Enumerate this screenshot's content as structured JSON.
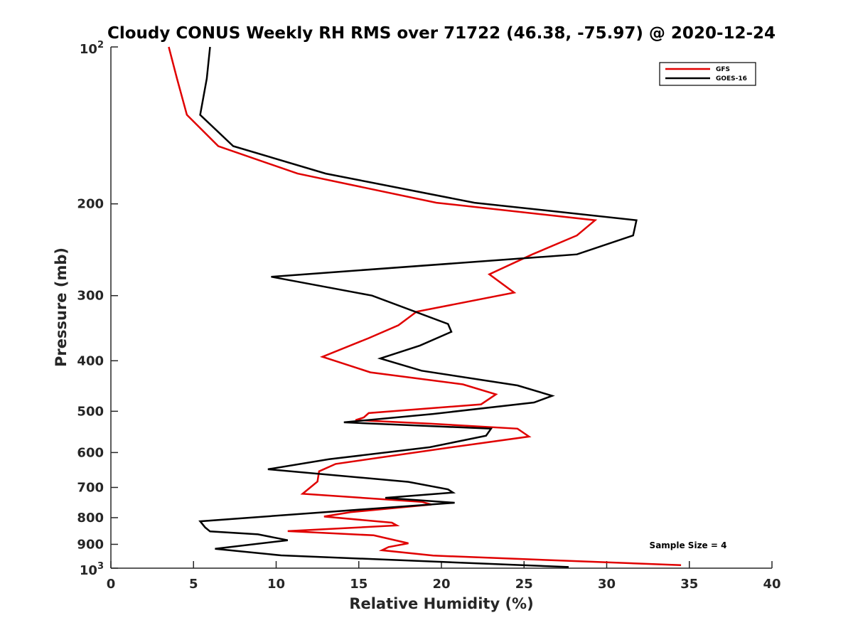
{
  "chart_data": {
    "type": "line",
    "title": "Cloudy CONUS Weekly RH RMS over 71722 (46.38, -75.97) @ 2020-12-24",
    "xlabel": "Relative Humidity (%)",
    "ylabel": "Pressure (mb)",
    "xlim": [
      0,
      40
    ],
    "ylim": [
      100,
      1000
    ],
    "yscale": "log",
    "y_reversed": true,
    "grid": false,
    "x_ticks": [
      0,
      5,
      10,
      15,
      20,
      25,
      30,
      35,
      40
    ],
    "x_tick_labels": [
      "0",
      "5",
      "10",
      "15",
      "20",
      "25",
      "30",
      "35",
      "40"
    ],
    "y_ticks": [
      200,
      300,
      400,
      500,
      600,
      700,
      800,
      900
    ],
    "y_tick_labels": [
      "200",
      "300",
      "400",
      "500",
      "600",
      "700",
      "800",
      "900"
    ],
    "y_ticks_exp": [
      {
        "value": 100,
        "base": "10",
        "exp": "2"
      },
      {
        "value": 1000,
        "base": "10",
        "exp": "3"
      }
    ],
    "legend": {
      "position": "top-right",
      "entries": [
        "GFS",
        "GOES-16"
      ]
    },
    "annotation": "Sample Size = 4",
    "series": [
      {
        "name": "GFS",
        "color": "#e00000",
        "points": [
          [
            3.5,
            100
          ],
          [
            4.0,
            115
          ],
          [
            4.6,
            135
          ],
          [
            6.5,
            155
          ],
          [
            11.3,
            175
          ],
          [
            19.7,
            199
          ],
          [
            29.3,
            215
          ],
          [
            28.2,
            230
          ],
          [
            25.5,
            250
          ],
          [
            22.9,
            273
          ],
          [
            24.4,
            296
          ],
          [
            18.5,
            322
          ],
          [
            17.4,
            342
          ],
          [
            15.6,
            362
          ],
          [
            12.8,
            393
          ],
          [
            15.7,
            421
          ],
          [
            21.3,
            444
          ],
          [
            23.3,
            464
          ],
          [
            22.4,
            485
          ],
          [
            15.6,
            504
          ],
          [
            15.3,
            514
          ],
          [
            14.8,
            520
          ],
          [
            19.3,
            528
          ],
          [
            24.6,
            540
          ],
          [
            25.3,
            559
          ],
          [
            20.3,
            588
          ],
          [
            13.6,
            631
          ],
          [
            12.6,
            652
          ],
          [
            12.5,
            682
          ],
          [
            11.6,
            720
          ],
          [
            18.8,
            746
          ],
          [
            19.4,
            755
          ],
          [
            14.5,
            781
          ],
          [
            12.9,
            796
          ],
          [
            17.0,
            818
          ],
          [
            17.3,
            828
          ],
          [
            10.7,
            849
          ],
          [
            15.9,
            865
          ],
          [
            18.0,
            896
          ],
          [
            16.8,
            911
          ],
          [
            16.4,
            924
          ],
          [
            19.5,
            946
          ],
          [
            34.5,
            987
          ]
        ]
      },
      {
        "name": "GOES-16",
        "color": "#000000",
        "points": [
          [
            6.0,
            100
          ],
          [
            5.8,
            115
          ],
          [
            5.4,
            135
          ],
          [
            7.4,
            155
          ],
          [
            13.0,
            175
          ],
          [
            22.0,
            199
          ],
          [
            31.8,
            215
          ],
          [
            31.6,
            230
          ],
          [
            28.2,
            250
          ],
          [
            9.7,
            276
          ],
          [
            15.8,
            300
          ],
          [
            20.4,
            340
          ],
          [
            20.6,
            352
          ],
          [
            18.7,
            374
          ],
          [
            16.3,
            396
          ],
          [
            18.8,
            418
          ],
          [
            24.6,
            446
          ],
          [
            26.7,
            467
          ],
          [
            25.6,
            481
          ],
          [
            19.5,
            506
          ],
          [
            14.1,
            525
          ],
          [
            23.0,
            540
          ],
          [
            22.7,
            557
          ],
          [
            19.3,
            586
          ],
          [
            13.2,
            618
          ],
          [
            9.5,
            646
          ],
          [
            18.0,
            683
          ],
          [
            20.4,
            706
          ],
          [
            20.7,
            716
          ],
          [
            16.6,
            733
          ],
          [
            20.8,
            749
          ],
          [
            13.6,
            778
          ],
          [
            5.4,
            813
          ],
          [
            5.7,
            835
          ],
          [
            6.0,
            850
          ],
          [
            8.9,
            861
          ],
          [
            10.7,
            884
          ],
          [
            6.3,
            918
          ],
          [
            10.3,
            945
          ],
          [
            27.7,
            995
          ]
        ]
      }
    ]
  }
}
